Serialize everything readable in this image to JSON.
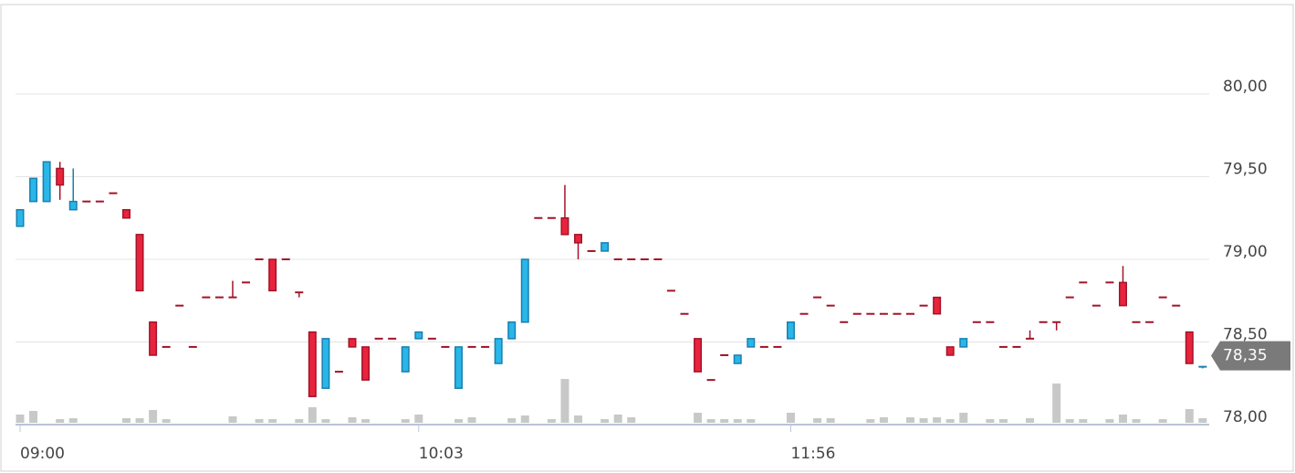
{
  "chart_data": {
    "type": "candlestick",
    "categories": [
      "09:00",
      null,
      null,
      null,
      null,
      null,
      null,
      null,
      null,
      null,
      null,
      null,
      null,
      null,
      null,
      null,
      null,
      null,
      null,
      null,
      null,
      null,
      null,
      null,
      null,
      null,
      null,
      null,
      null,
      null,
      "10:03",
      null,
      null,
      null,
      null,
      null,
      null,
      null,
      null,
      null,
      null,
      null,
      null,
      null,
      null,
      null,
      null,
      null,
      null,
      null,
      null,
      null,
      null,
      null,
      null,
      null,
      null,
      null,
      "11:56",
      null,
      null,
      null,
      null,
      null,
      null,
      null,
      null,
      null,
      null,
      null,
      null,
      null,
      null,
      null,
      null,
      null,
      null,
      null,
      null,
      null,
      null,
      null,
      null,
      null,
      null,
      null,
      null,
      null,
      null,
      null
    ],
    "open": [
      79.2,
      79.35,
      79.35,
      79.55,
      79.3,
      79.35,
      79.35,
      79.4,
      79.3,
      79.15,
      78.62,
      78.47,
      78.72,
      78.47,
      78.77,
      78.77,
      78.77,
      78.86,
      79.0,
      79.0,
      79.0,
      78.8,
      78.56,
      78.22,
      78.32,
      78.52,
      78.47,
      78.52,
      78.52,
      78.32,
      78.52,
      78.52,
      78.47,
      78.22,
      78.47,
      78.47,
      78.37,
      78.52,
      78.62,
      79.25,
      79.25,
      79.25,
      79.15,
      79.05,
      79.05,
      79.0,
      79.0,
      79.0,
      79.0,
      78.81,
      78.67,
      78.52,
      78.27,
      78.42,
      78.37,
      78.47,
      78.47,
      78.47,
      78.52,
      78.67,
      78.77,
      78.72,
      78.62,
      78.67,
      78.67,
      78.67,
      78.67,
      78.67,
      78.72,
      78.77,
      78.47,
      78.47,
      78.62,
      78.62,
      78.47,
      78.47,
      78.52,
      78.62,
      78.62,
      78.77,
      78.86,
      78.72,
      78.86,
      78.86,
      78.62,
      78.62,
      78.77,
      78.72,
      78.56,
      78.34
    ],
    "high": [
      79.3,
      79.49,
      79.59,
      79.59,
      79.55,
      79.35,
      79.35,
      79.4,
      79.3,
      79.15,
      78.62,
      78.47,
      78.72,
      78.47,
      78.77,
      78.77,
      78.87,
      78.86,
      79.0,
      79.0,
      79.0,
      78.8,
      78.56,
      78.52,
      78.32,
      78.52,
      78.47,
      78.52,
      78.52,
      78.47,
      78.56,
      78.52,
      78.47,
      78.47,
      78.47,
      78.47,
      78.52,
      78.62,
      79.0,
      79.25,
      79.25,
      79.45,
      79.15,
      79.05,
      79.1,
      79.0,
      79.0,
      79.0,
      79.0,
      78.81,
      78.67,
      78.52,
      78.27,
      78.42,
      78.42,
      78.52,
      78.47,
      78.47,
      78.62,
      78.67,
      78.77,
      78.72,
      78.62,
      78.67,
      78.67,
      78.67,
      78.67,
      78.67,
      78.72,
      78.77,
      78.47,
      78.52,
      78.62,
      78.62,
      78.47,
      78.47,
      78.57,
      78.62,
      78.62,
      78.77,
      78.86,
      78.72,
      78.86,
      78.96,
      78.62,
      78.62,
      78.77,
      78.72,
      78.56,
      78.35
    ],
    "low": [
      79.2,
      79.35,
      79.35,
      79.36,
      79.3,
      79.35,
      79.35,
      79.4,
      79.25,
      78.81,
      78.42,
      78.47,
      78.72,
      78.47,
      78.77,
      78.77,
      78.77,
      78.86,
      79.0,
      78.81,
      79.0,
      78.77,
      78.17,
      78.22,
      78.32,
      78.47,
      78.27,
      78.52,
      78.52,
      78.32,
      78.52,
      78.52,
      78.47,
      78.22,
      78.47,
      78.47,
      78.37,
      78.52,
      78.62,
      79.25,
      79.25,
      79.15,
      79.0,
      79.05,
      79.05,
      79.0,
      79.0,
      79.0,
      79.0,
      78.81,
      78.67,
      78.32,
      78.27,
      78.42,
      78.37,
      78.47,
      78.47,
      78.47,
      78.52,
      78.67,
      78.77,
      78.72,
      78.62,
      78.67,
      78.67,
      78.67,
      78.67,
      78.67,
      78.72,
      78.67,
      78.42,
      78.47,
      78.62,
      78.62,
      78.47,
      78.47,
      78.52,
      78.62,
      78.57,
      78.77,
      78.86,
      78.72,
      78.86,
      78.72,
      78.62,
      78.62,
      78.77,
      78.72,
      78.37,
      78.34
    ],
    "close": [
      79.3,
      79.49,
      79.59,
      79.45,
      79.35,
      79.35,
      79.35,
      79.4,
      79.25,
      78.81,
      78.42,
      78.47,
      78.72,
      78.47,
      78.77,
      78.77,
      78.77,
      78.86,
      79.0,
      78.81,
      79.0,
      78.8,
      78.17,
      78.52,
      78.32,
      78.47,
      78.27,
      78.52,
      78.52,
      78.47,
      78.56,
      78.52,
      78.47,
      78.47,
      78.47,
      78.47,
      78.52,
      78.62,
      79.0,
      79.25,
      79.25,
      79.15,
      79.1,
      79.05,
      79.1,
      79.0,
      79.0,
      79.0,
      79.0,
      78.81,
      78.67,
      78.32,
      78.27,
      78.42,
      78.42,
      78.52,
      78.47,
      78.47,
      78.62,
      78.67,
      78.77,
      78.72,
      78.62,
      78.67,
      78.67,
      78.67,
      78.67,
      78.67,
      78.72,
      78.67,
      78.42,
      78.52,
      78.62,
      78.62,
      78.47,
      78.47,
      78.52,
      78.62,
      78.62,
      78.77,
      78.86,
      78.72,
      78.86,
      78.72,
      78.62,
      78.62,
      78.77,
      78.72,
      78.37,
      78.35
    ],
    "volume": [
      9,
      13,
      null,
      4,
      5,
      null,
      null,
      null,
      5,
      5,
      14,
      4,
      null,
      null,
      null,
      null,
      7,
      null,
      4,
      4,
      null,
      4,
      17,
      4,
      null,
      6,
      4,
      null,
      null,
      4,
      9,
      null,
      null,
      4,
      6,
      null,
      null,
      5,
      8,
      null,
      4,
      48,
      8,
      null,
      4,
      9,
      6,
      null,
      null,
      null,
      null,
      11,
      4,
      4,
      4,
      4,
      null,
      null,
      11,
      null,
      5,
      5,
      null,
      null,
      4,
      6,
      null,
      6,
      5,
      6,
      4,
      11,
      null,
      4,
      4,
      null,
      5,
      null,
      43,
      4,
      4,
      null,
      4,
      9,
      4,
      null,
      4,
      null,
      15,
      5
    ],
    "up_color": "#29b6e8",
    "down_color": "#e8243c",
    "volume_color": "#c8c8c8",
    "ylim": [
      78,
      80.5
    ],
    "yticks": [
      {
        "value": 78,
        "label": "78,00"
      },
      {
        "value": 78.5,
        "label": "78,50"
      },
      {
        "value": 79,
        "label": "79,00"
      },
      {
        "value": 79.5,
        "label": "79,50"
      },
      {
        "value": 80,
        "label": "80,00"
      }
    ],
    "grid": true,
    "last_price": {
      "value": 78.35,
      "label": "78,35"
    }
  }
}
